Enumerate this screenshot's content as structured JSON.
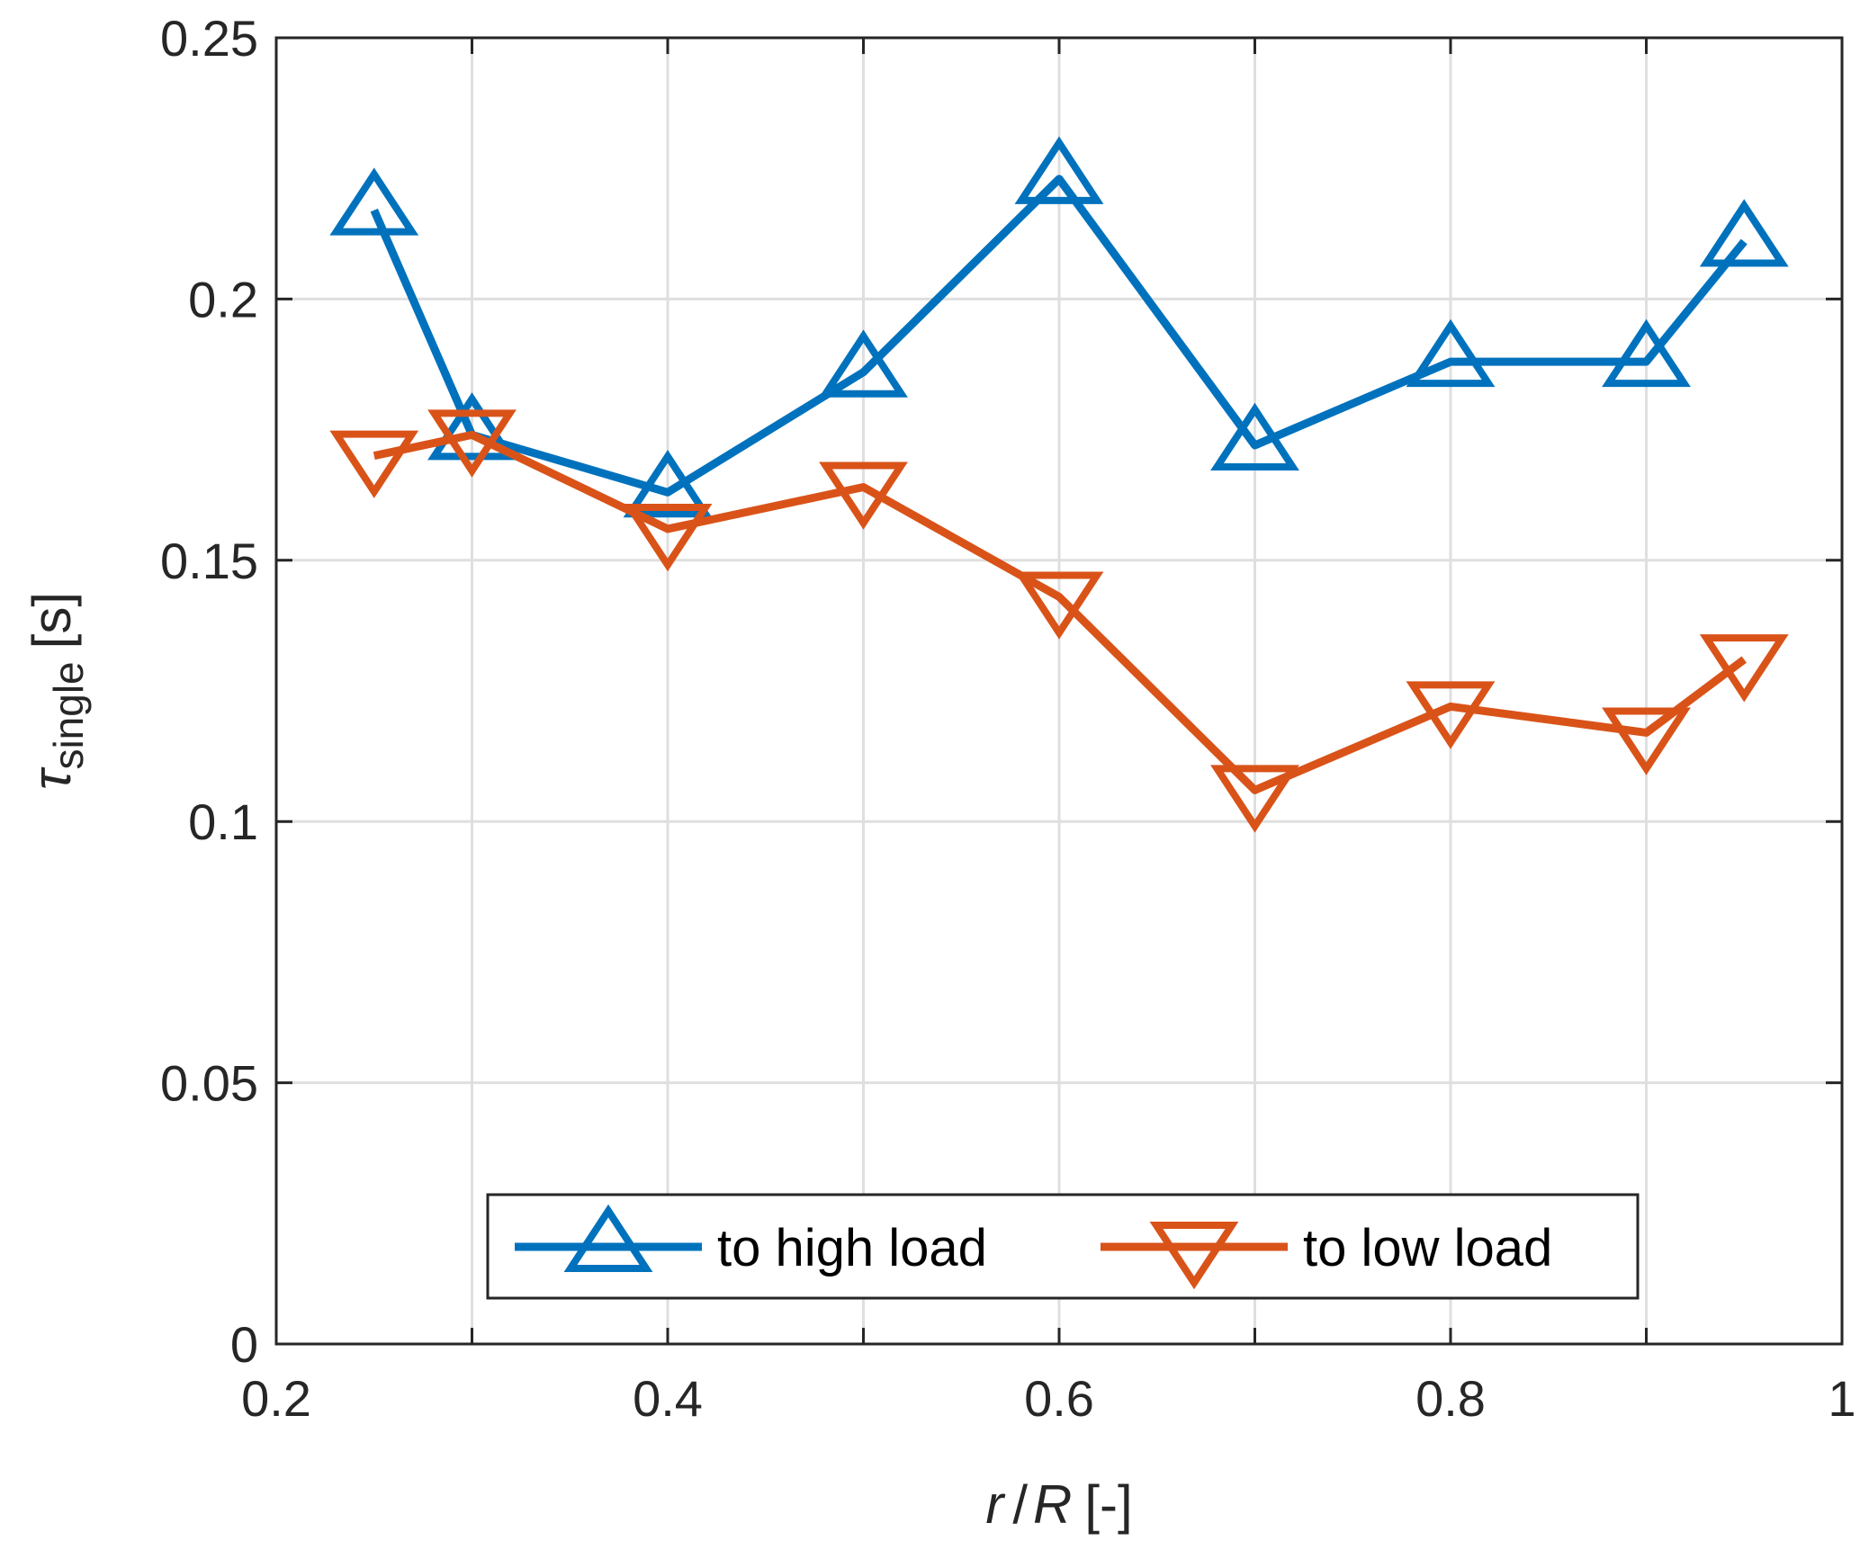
{
  "chart_data": {
    "type": "line",
    "title": "",
    "xlabel": {
      "var1": "r",
      "sep": "/",
      "var2": "R",
      "unit": "[-]"
    },
    "ylabel": {
      "symbol": "τ",
      "subscript": "single",
      "unit": "[s]"
    },
    "xlim": [
      0.2,
      1.0
    ],
    "ylim": [
      0,
      0.25
    ],
    "xticks": [
      0.2,
      0.4,
      0.6,
      0.8,
      1.0
    ],
    "xtick_labels": [
      "0.2",
      "0.4",
      "0.6",
      "0.8",
      "1"
    ],
    "yticks": [
      0,
      0.05,
      0.1,
      0.15,
      0.2,
      0.25
    ],
    "ytick_labels": [
      "0",
      "0.05",
      "0.1",
      "0.15",
      "0.2",
      "0.25"
    ],
    "xgrid": [
      0.3,
      0.4,
      0.5,
      0.6,
      0.7,
      0.8,
      0.9
    ],
    "ygrid": [
      0.05,
      0.1,
      0.15,
      0.2
    ],
    "grid": true,
    "legend_position": "bottom-center",
    "x": [
      0.25,
      0.3,
      0.4,
      0.5,
      0.6,
      0.7,
      0.8,
      0.9,
      0.95
    ],
    "series": [
      {
        "name": "to high load",
        "marker": "triangle-up",
        "color": "#0072BD",
        "values": [
          0.217,
          0.174,
          0.163,
          0.186,
          0.223,
          0.172,
          0.188,
          0.188,
          0.211
        ]
      },
      {
        "name": "to low load",
        "marker": "triangle-down",
        "color": "#D95319",
        "values": [
          0.17,
          0.174,
          0.156,
          0.164,
          0.143,
          0.106,
          0.122,
          0.117,
          0.131
        ]
      }
    ]
  }
}
